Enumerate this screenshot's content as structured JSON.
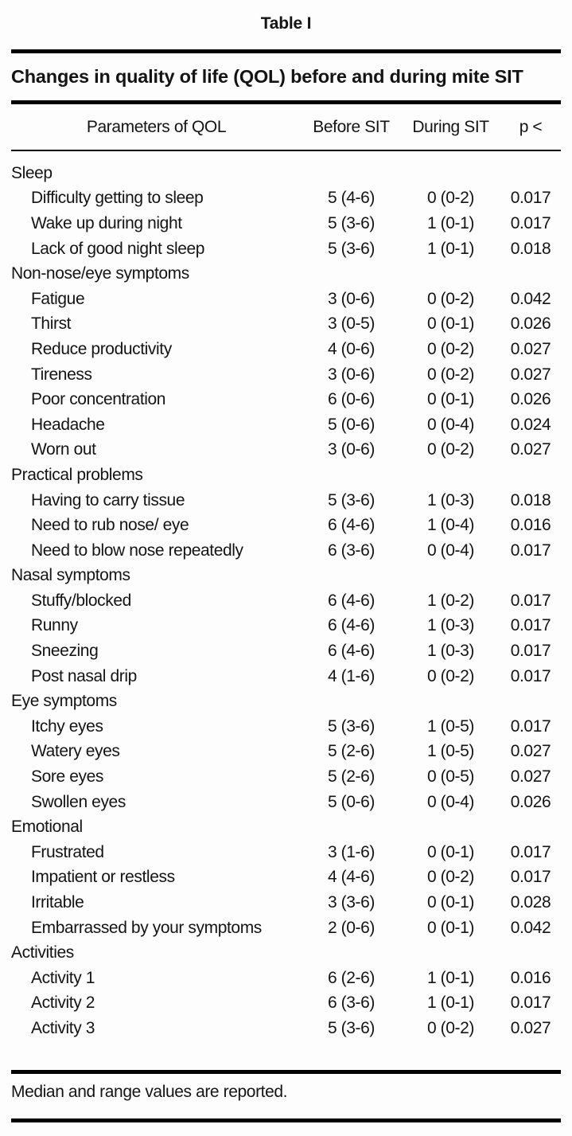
{
  "table": {
    "label": "Table I",
    "title": "Changes in quality of life (QOL) before and during mite SIT",
    "columns": [
      "Parameters of QOL",
      "Before SIT",
      "During SIT",
      "p <"
    ],
    "footnote": "Median and range values are reported.",
    "text_color": "#141414",
    "rule_color": "#000000",
    "groups": [
      {
        "name": "Sleep",
        "rows": [
          {
            "parameter": "Difficulty getting to sleep",
            "before": "5 (4-6)",
            "during": "0 (0-2)",
            "p": "0.017"
          },
          {
            "parameter": "Wake up during night",
            "before": "5 (3-6)",
            "during": "1 (0-1)",
            "p": "0.017"
          },
          {
            "parameter": "Lack of good night sleep",
            "before": "5 (3-6)",
            "during": "1 (0-1)",
            "p": "0.018"
          }
        ]
      },
      {
        "name": "Non-nose/eye symptoms",
        "rows": [
          {
            "parameter": "Fatigue",
            "before": "3 (0-6)",
            "during": "0 (0-2)",
            "p": "0.042"
          },
          {
            "parameter": "Thirst",
            "before": "3 (0-5)",
            "during": "0 (0-1)",
            "p": "0.026"
          },
          {
            "parameter": "Reduce productivity",
            "before": "4 (0-6)",
            "during": "0 (0-2)",
            "p": "0.027"
          },
          {
            "parameter": "Tireness",
            "before": "3 (0-6)",
            "during": "0 (0-2)",
            "p": "0.027"
          },
          {
            "parameter": "Poor concentration",
            "before": "6 (0-6)",
            "during": "0 (0-1)",
            "p": "0.026"
          },
          {
            "parameter": "Headache",
            "before": "5 (0-6)",
            "during": "0 (0-4)",
            "p": "0.024"
          },
          {
            "parameter": "Worn out",
            "before": "3 (0-6)",
            "during": "0 (0-2)",
            "p": "0.027"
          }
        ]
      },
      {
        "name": "Practical problems",
        "rows": [
          {
            "parameter": "Having to carry tissue",
            "before": "5 (3-6)",
            "during": "1 (0-3)",
            "p": "0.018"
          },
          {
            "parameter": "Need to rub nose/ eye",
            "before": "6 (4-6)",
            "during": "1 (0-4)",
            "p": "0.016"
          },
          {
            "parameter": "Need to blow nose repeatedly",
            "before": "6 (3-6)",
            "during": "0 (0-4)",
            "p": "0.017"
          }
        ]
      },
      {
        "name": "Nasal symptoms",
        "rows": [
          {
            "parameter": "Stuffy/blocked",
            "before": "6 (4-6)",
            "during": "1 (0-2)",
            "p": "0.017"
          },
          {
            "parameter": "Runny",
            "before": "6 (4-6)",
            "during": "1 (0-3)",
            "p": "0.017"
          },
          {
            "parameter": "Sneezing",
            "before": "6 (4-6)",
            "during": "1 (0-3)",
            "p": "0.017"
          },
          {
            "parameter": "Post nasal drip",
            "before": "4 (1-6)",
            "during": "0 (0-2)",
            "p": "0.017"
          }
        ]
      },
      {
        "name": "Eye symptoms",
        "rows": [
          {
            "parameter": "Itchy eyes",
            "before": "5 (3-6)",
            "during": "1 (0-5)",
            "p": "0.017"
          },
          {
            "parameter": "Watery eyes",
            "before": "5 (2-6)",
            "during": "1 (0-5)",
            "p": "0.027"
          },
          {
            "parameter": "Sore eyes",
            "before": "5 (2-6)",
            "during": "0 (0-5)",
            "p": "0.027"
          },
          {
            "parameter": "Swollen eyes",
            "before": "5 (0-6)",
            "during": "0 (0-4)",
            "p": "0.026"
          }
        ]
      },
      {
        "name": "Emotional",
        "rows": [
          {
            "parameter": "Frustrated",
            "before": "3 (1-6)",
            "during": "0 (0-1)",
            "p": "0.017"
          },
          {
            "parameter": "Impatient or restless",
            "before": "4 (4-6)",
            "during": "0 (0-2)",
            "p": "0.017"
          },
          {
            "parameter": "Irritable",
            "before": "3 (3-6)",
            "during": "0 (0-1)",
            "p": "0.028"
          },
          {
            "parameter": "Embarrassed by your symptoms",
            "before": "2 (0-6)",
            "during": "0 (0-1)",
            "p": "0.042"
          }
        ]
      },
      {
        "name": "Activities",
        "rows": [
          {
            "parameter": "Activity 1",
            "before": "6 (2-6)",
            "during": "1 (0-1)",
            "p": "0.016"
          },
          {
            "parameter": "Activity 2",
            "before": "6 (3-6)",
            "during": "1 (0-1)",
            "p": "0.017"
          },
          {
            "parameter": "Activity 3",
            "before": "5 (3-6)",
            "during": "0 (0-2)",
            "p": "0.027"
          }
        ]
      }
    ]
  }
}
